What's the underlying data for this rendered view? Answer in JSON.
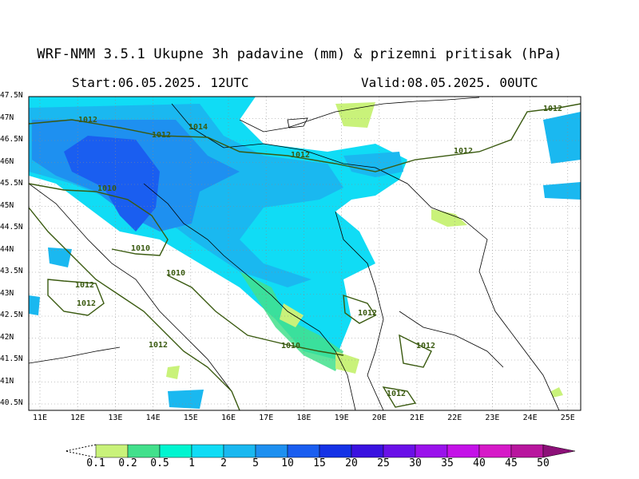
{
  "header": {
    "title": "WRF-NMM 3.5.1  Ukupne 3h padavine (mm) & prizemni pritisak (hPa)",
    "start": "Start:06.05.2025.  12UTC",
    "valid": "Valid:08.05.2025.  00UTC"
  },
  "axes": {
    "lat_labels": [
      "47.5N",
      "47N",
      "46.5N",
      "46N",
      "45.5N",
      "45N",
      "44.5N",
      "44N",
      "43.5N",
      "43N",
      "42.5N",
      "42N",
      "41.5N",
      "41N",
      "40.5N"
    ],
    "lon_labels": [
      "11E",
      "12E",
      "13E",
      "14E",
      "15E",
      "16E",
      "17E",
      "18E",
      "19E",
      "20E",
      "21E",
      "22E",
      "23E",
      "24E",
      "25E"
    ]
  },
  "isobars": {
    "labels": [
      "1012",
      "1012",
      "1014",
      "1012",
      "1010",
      "1010",
      "1010",
      "1012",
      "1012",
      "1012",
      "1012",
      "1012",
      "1012",
      "1012",
      "1010",
      "1012"
    ]
  },
  "legend": {
    "labels": [
      "0.1",
      "0.2",
      "0.5",
      "1",
      "2",
      "5",
      "10",
      "15",
      "20",
      "25",
      "30",
      "35",
      "40",
      "45",
      "50"
    ],
    "colors": [
      "#c9f27a",
      "#42e08c",
      "#00f5d0",
      "#10dcf5",
      "#1ab8f0",
      "#1e90f0",
      "#1a5ef0",
      "#1532e6",
      "#3a12e0",
      "#6a10e8",
      "#9a12ec",
      "#c412e8",
      "#d61ac8",
      "#b8169e",
      "#8c1078"
    ],
    "colors_note": ""
  },
  "colors": {
    "isobar": "#3a5a10",
    "coast": "#000000",
    "grid": "#8a8a8a"
  }
}
